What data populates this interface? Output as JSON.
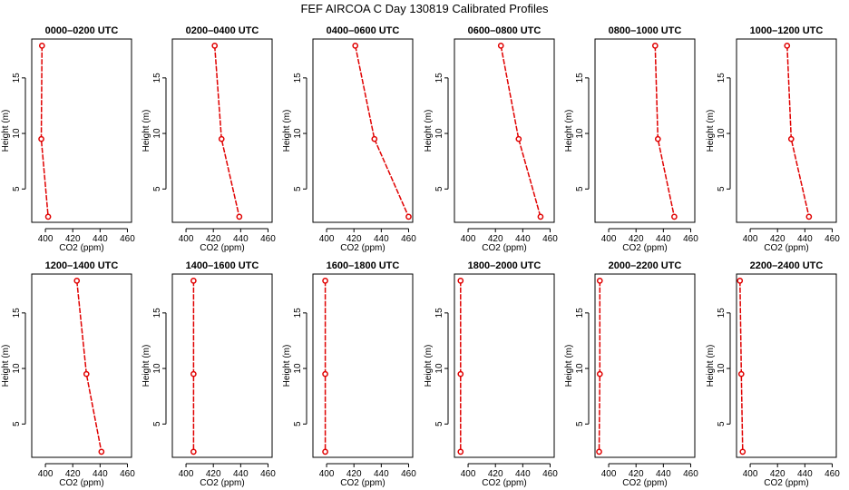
{
  "figure": {
    "title": "FEF AIRCOA C  Day 130819  Calibrated Profiles"
  },
  "style": {
    "line_color": "#e00000"
  },
  "chart_data": [
    {
      "type": "line",
      "title": "0000–0200 UTC",
      "xlabel": "CO2 (ppm)",
      "ylabel": "Height (m)",
      "xlim": [
        390,
        463
      ],
      "ylim": [
        2,
        18.5
      ],
      "xticks": [
        400,
        420,
        440,
        460
      ],
      "yticks": [
        5,
        10,
        15
      ],
      "y": [
        17.9,
        9.5,
        2.5
      ],
      "x": [
        397.5,
        397,
        402
      ]
    },
    {
      "type": "line",
      "title": "0200–0400 UTC",
      "xlabel": "CO2 (ppm)",
      "ylabel": "Height (m)",
      "xlim": [
        390,
        463
      ],
      "ylim": [
        2,
        18.5
      ],
      "xticks": [
        400,
        420,
        440,
        460
      ],
      "yticks": [
        5,
        10,
        15
      ],
      "y": [
        17.9,
        9.5,
        2.5
      ],
      "x": [
        421,
        426,
        439
      ]
    },
    {
      "type": "line",
      "title": "0400–0600 UTC",
      "xlabel": "CO2 (ppm)",
      "ylabel": "Height (m)",
      "xlim": [
        390,
        463
      ],
      "ylim": [
        2,
        18.5
      ],
      "xticks": [
        400,
        420,
        440,
        460
      ],
      "yticks": [
        5,
        10,
        15
      ],
      "y": [
        17.9,
        9.5,
        2.5
      ],
      "x": [
        421,
        435,
        460
      ]
    },
    {
      "type": "line",
      "title": "0600–0800 UTC",
      "xlabel": "CO2 (ppm)",
      "ylabel": "Height (m)",
      "xlim": [
        390,
        463
      ],
      "ylim": [
        2,
        18.5
      ],
      "xticks": [
        400,
        420,
        440,
        460
      ],
      "yticks": [
        5,
        10,
        15
      ],
      "y": [
        17.9,
        9.5,
        2.5
      ],
      "x": [
        424,
        437,
        453
      ]
    },
    {
      "type": "line",
      "title": "0800–1000 UTC",
      "xlabel": "CO2 (ppm)",
      "ylabel": "Height (m)",
      "xlim": [
        390,
        463
      ],
      "ylim": [
        2,
        18.5
      ],
      "xticks": [
        400,
        420,
        440,
        460
      ],
      "yticks": [
        5,
        10,
        15
      ],
      "y": [
        17.9,
        9.5,
        2.5
      ],
      "x": [
        434,
        436,
        448
      ]
    },
    {
      "type": "line",
      "title": "1000–1200 UTC",
      "xlabel": "CO2 (ppm)",
      "ylabel": "Height (m)",
      "xlim": [
        390,
        463
      ],
      "ylim": [
        2,
        18.5
      ],
      "xticks": [
        400,
        420,
        440,
        460
      ],
      "yticks": [
        5,
        10,
        15
      ],
      "y": [
        17.9,
        9.5,
        2.5
      ],
      "x": [
        427,
        430,
        443
      ]
    },
    {
      "type": "line",
      "title": "1200–1400 UTC",
      "xlabel": "CO2 (ppm)",
      "ylabel": "Height (m)",
      "xlim": [
        390,
        463
      ],
      "ylim": [
        2,
        18.5
      ],
      "xticks": [
        400,
        420,
        440,
        460
      ],
      "yticks": [
        5,
        10,
        15
      ],
      "y": [
        17.9,
        9.5,
        2.5
      ],
      "x": [
        423,
        430,
        441
      ]
    },
    {
      "type": "line",
      "title": "1400–1600 UTC",
      "xlabel": "CO2 (ppm)",
      "ylabel": "Height (m)",
      "xlim": [
        390,
        463
      ],
      "ylim": [
        2,
        18.5
      ],
      "xticks": [
        400,
        420,
        440,
        460
      ],
      "yticks": [
        5,
        10,
        15
      ],
      "y": [
        17.9,
        9.5,
        2.5
      ],
      "x": [
        405.5,
        405.5,
        405.5
      ]
    },
    {
      "type": "line",
      "title": "1600–1800 UTC",
      "xlabel": "CO2 (ppm)",
      "ylabel": "Height (m)",
      "xlim": [
        390,
        463
      ],
      "ylim": [
        2,
        18.5
      ],
      "xticks": [
        400,
        420,
        440,
        460
      ],
      "yticks": [
        5,
        10,
        15
      ],
      "y": [
        17.9,
        9.5,
        2.5
      ],
      "x": [
        399,
        399,
        399
      ]
    },
    {
      "type": "line",
      "title": "1800–2000 UTC",
      "xlabel": "CO2 (ppm)",
      "ylabel": "Height (m)",
      "xlim": [
        390,
        463
      ],
      "ylim": [
        2,
        18.5
      ],
      "xticks": [
        400,
        420,
        440,
        460
      ],
      "yticks": [
        5,
        10,
        15
      ],
      "y": [
        17.9,
        9.5,
        2.5
      ],
      "x": [
        394.5,
        394.5,
        394.5
      ]
    },
    {
      "type": "line",
      "title": "2000–2200 UTC",
      "xlabel": "CO2 (ppm)",
      "ylabel": "Height (m)",
      "xlim": [
        390,
        463
      ],
      "ylim": [
        2,
        18.5
      ],
      "xticks": [
        400,
        420,
        440,
        460
      ],
      "yticks": [
        5,
        10,
        15
      ],
      "y": [
        17.9,
        9.5,
        2.5
      ],
      "x": [
        393.5,
        393.5,
        393
      ]
    },
    {
      "type": "line",
      "title": "2200–2400 UTC",
      "xlabel": "CO2 (ppm)",
      "ylabel": "Height (m)",
      "xlim": [
        390,
        463
      ],
      "ylim": [
        2,
        18.5
      ],
      "xticks": [
        400,
        420,
        440,
        460
      ],
      "yticks": [
        5,
        10,
        15
      ],
      "y": [
        17.9,
        9.5,
        2.5
      ],
      "x": [
        392.5,
        393.5,
        394.5
      ]
    }
  ]
}
